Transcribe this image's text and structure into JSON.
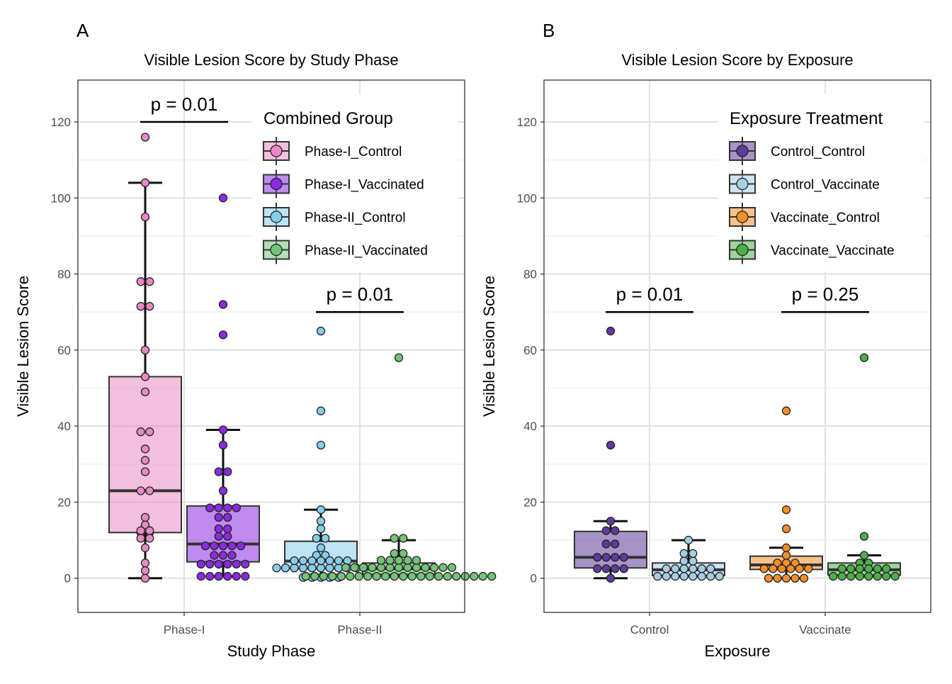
{
  "chart_data": [
    {
      "panel_label": "A",
      "type": "box-dotplot",
      "title": "Visible Lesion Score by Study Phase",
      "xlabel": "Study Phase",
      "ylabel": "Visible Lesion Score",
      "ylim": [
        -9,
        131
      ],
      "yticks": [
        0,
        20,
        40,
        60,
        80,
        100,
        120
      ],
      "categories": [
        "Phase-I",
        "Phase-II"
      ],
      "grid": true,
      "legend": {
        "title": "Combined Group",
        "position": "top-right",
        "entries": [
          "Phase-I_Control",
          "Phase-I_Vaccinated",
          "Phase-II_Control",
          "Phase-II_Vaccinated"
        ]
      },
      "series": [
        {
          "name": "Phase-I_Control",
          "category": "Phase-I",
          "offset": -1,
          "color": "#e78ac3",
          "box": {
            "q1": 12,
            "median": 23,
            "q3": 53,
            "lower_whisker": 0,
            "upper_whisker": 104
          },
          "points": [
            0,
            2,
            4,
            8,
            10.5,
            10.5,
            12,
            12,
            12.5,
            12.5,
            14,
            16,
            23,
            23,
            28,
            31,
            34,
            38.5,
            38.5,
            49,
            53,
            60,
            71.5,
            71.5,
            78,
            78,
            95,
            104,
            116
          ]
        },
        {
          "name": "Phase-I_Vaccinated",
          "category": "Phase-I",
          "offset": 1,
          "color": "#8a2be2",
          "box": {
            "q1": 4.3,
            "median": 9,
            "q3": 19,
            "lower_whisker": 0.5,
            "upper_whisker": 39
          },
          "points": [
            0.5,
            0.5,
            0.5,
            0.5,
            0.5,
            0.5,
            3.7,
            3.7,
            3.7,
            3.7,
            3.7,
            3.7,
            6,
            6,
            6,
            8.5,
            8.5,
            8.5,
            8.5,
            8.5,
            11,
            11,
            13,
            13,
            16,
            16,
            18.5,
            18.5,
            18.5,
            18.5,
            23,
            28,
            28,
            35,
            39,
            64,
            72,
            100
          ]
        },
        {
          "name": "Phase-II_Control",
          "category": "Phase-II",
          "offset": -1,
          "color": "#87ceeb",
          "box": {
            "q1": 2.5,
            "median": 4.5,
            "q3": 9.7,
            "lower_whisker": 0,
            "upper_whisker": 18
          },
          "points": [
            0.2,
            0.2,
            0.2,
            0.2,
            0.2,
            2.7,
            2.7,
            2.7,
            2.7,
            2.7,
            2.7,
            2.7,
            2.7,
            2.7,
            2.7,
            2.7,
            4.6,
            4.6,
            4.6,
            4.6,
            4.6,
            4.6,
            4.6,
            6,
            6,
            8,
            10.5,
            10.5,
            13,
            15,
            18,
            35,
            44,
            65
          ]
        },
        {
          "name": "Phase-II_Vaccinated",
          "category": "Phase-II",
          "offset": 1,
          "color": "#74c476",
          "box": {
            "q1": 1,
            "median": 2.5,
            "q3": 4,
            "lower_whisker": 0.5,
            "upper_whisker": 10
          },
          "points": [
            0.5,
            0.5,
            0.5,
            0.5,
            0.5,
            0.5,
            0.5,
            0.5,
            0.5,
            0.5,
            0.5,
            0.5,
            0.5,
            0.5,
            0.5,
            0.5,
            0.5,
            0.5,
            0.5,
            0.5,
            0.5,
            0.5,
            2.8,
            2.8,
            2.8,
            2.8,
            2.8,
            2.8,
            2.8,
            2.8,
            2.8,
            2.8,
            2.8,
            2.8,
            2.8,
            4.7,
            4.7,
            4.7,
            4.7,
            4.7,
            6.5,
            6.5,
            10.5,
            10.5,
            58
          ]
        }
      ],
      "annotations": [
        {
          "text": "p = 0.01",
          "category": "Phase-I",
          "y": 120
        },
        {
          "text": "p = 0.01",
          "category": "Phase-II",
          "y": 70
        }
      ]
    },
    {
      "panel_label": "B",
      "type": "box-dotplot",
      "title": "Visible Lesion Score by Exposure",
      "xlabel": "Exposure",
      "ylabel": "Visible Lesion Score",
      "ylim": [
        -9,
        131
      ],
      "yticks": [
        0,
        20,
        40,
        60,
        80,
        100,
        120
      ],
      "categories": [
        "Control",
        "Vaccinate"
      ],
      "grid": true,
      "legend": {
        "title": "Exposure Treatment",
        "position": "top-right",
        "entries": [
          "Control_Control",
          "Control_Vaccinate",
          "Vaccinate_Control",
          "Vaccinate_Vaccinate"
        ]
      },
      "series": [
        {
          "name": "Control_Control",
          "category": "Control",
          "offset": -1,
          "color": "#5e3c99",
          "box": {
            "q1": 2.7,
            "median": 5.5,
            "q3": 12.3,
            "lower_whisker": 0,
            "upper_whisker": 15
          },
          "points": [
            0,
            2.5,
            2.5,
            2.5,
            2.5,
            5.5,
            5.5,
            5.5,
            5.5,
            9,
            9,
            12.5,
            12.5,
            15,
            35,
            65
          ]
        },
        {
          "name": "Control_Vaccinate",
          "category": "Control",
          "offset": 1,
          "color": "#a6cee3",
          "box": {
            "q1": 0.7,
            "median": 2.2,
            "q3": 4,
            "lower_whisker": 0.5,
            "upper_whisker": 10
          },
          "points": [
            0.5,
            0.5,
            0.5,
            0.5,
            0.5,
            0.5,
            0.5,
            0.5,
            2.5,
            2.5,
            2.5,
            2.5,
            2.5,
            2.5,
            4.5,
            4.5,
            6.5,
            6.5,
            10
          ]
        },
        {
          "name": "Vaccinate_Control",
          "category": "Vaccinate",
          "offset": -1,
          "color": "#f28e2b",
          "box": {
            "q1": 2.3,
            "median": 3.5,
            "q3": 5.8,
            "lower_whisker": 0,
            "upper_whisker": 8
          },
          "points": [
            0,
            0,
            0,
            0,
            0,
            2.5,
            2.5,
            2.5,
            2.5,
            2.5,
            2.5,
            4,
            4,
            4,
            6,
            8,
            13,
            18,
            44
          ]
        },
        {
          "name": "Vaccinate_Vaccinate",
          "category": "Vaccinate",
          "offset": 1,
          "color": "#4daf4a",
          "box": {
            "q1": 0.8,
            "median": 2.2,
            "q3": 4,
            "lower_whisker": 0.5,
            "upper_whisker": 6
          },
          "points": [
            0.5,
            0.5,
            0.5,
            0.5,
            0.5,
            0.5,
            0.5,
            0.5,
            2.5,
            2.5,
            2.5,
            2.5,
            2.5,
            2.5,
            4,
            4,
            6,
            11,
            58
          ]
        }
      ],
      "annotations": [
        {
          "text": "p = 0.01",
          "category": "Control",
          "y": 70
        },
        {
          "text": "p = 0.25",
          "category": "Vaccinate",
          "y": 70
        }
      ]
    }
  ]
}
